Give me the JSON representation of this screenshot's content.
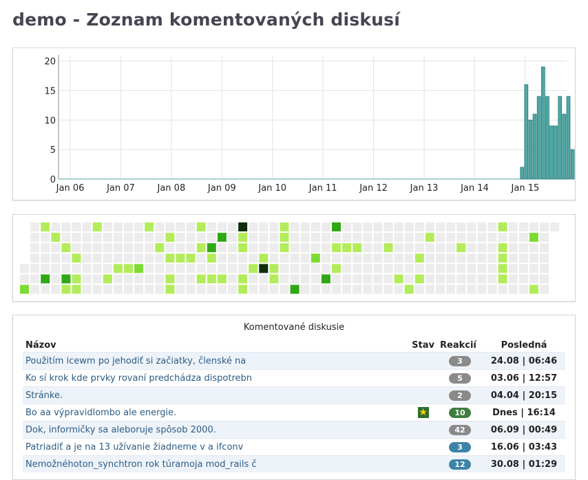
{
  "page": {
    "title": "demo - Zoznam komentovaných diskusí"
  },
  "chart_data": {
    "type": "bar",
    "x_tick_labels": [
      "Jan 06",
      "Jan 07",
      "Jan 08",
      "Jan 09",
      "Jan 10",
      "Jan 11",
      "Jan 12",
      "Jan 13",
      "Jan 14",
      "Jan 15"
    ],
    "y_ticks": [
      0,
      5,
      10,
      15,
      20
    ],
    "ylim": [
      0,
      21
    ],
    "grid": true,
    "bar_color": "#4fa7a4",
    "months_before_data": 107,
    "total_months": 120,
    "values": [
      2,
      16,
      10,
      11,
      14,
      19,
      14,
      9,
      9,
      14,
      11,
      14,
      5
    ]
  },
  "heatmap": {
    "levels": [
      "#ececec",
      "#b3ec5a",
      "#7cdb33",
      "#2fa814",
      "#0c2e0a"
    ],
    "weeks": [
      [
        0,
        0,
        0,
        0,
        0,
        0,
        2
      ],
      [
        0,
        0,
        0,
        0,
        0,
        0,
        0
      ],
      [
        1,
        0,
        0,
        0,
        0,
        3,
        0
      ],
      [
        0,
        1,
        0,
        0,
        0,
        0,
        0
      ],
      [
        0,
        0,
        1,
        0,
        0,
        3,
        1
      ],
      [
        0,
        0,
        0,
        1,
        0,
        1,
        1
      ],
      [
        0,
        0,
        0,
        0,
        0,
        0,
        0
      ],
      [
        1,
        0,
        0,
        0,
        0,
        0,
        0
      ],
      [
        0,
        0,
        0,
        0,
        0,
        1,
        0
      ],
      [
        0,
        0,
        0,
        0,
        1,
        0,
        0
      ],
      [
        0,
        0,
        0,
        0,
        1,
        0,
        0
      ],
      [
        0,
        0,
        0,
        0,
        2,
        0,
        0
      ],
      [
        1,
        0,
        0,
        0,
        0,
        0,
        0
      ],
      [
        0,
        0,
        1,
        0,
        0,
        0,
        0
      ],
      [
        0,
        1,
        0,
        1,
        0,
        1,
        1
      ],
      [
        0,
        0,
        0,
        1,
        0,
        0,
        0
      ],
      [
        0,
        0,
        0,
        1,
        0,
        0,
        0
      ],
      [
        1,
        0,
        1,
        0,
        0,
        1,
        0
      ],
      [
        0,
        0,
        3,
        1,
        0,
        1,
        0
      ],
      [
        0,
        3,
        0,
        0,
        0,
        1,
        0
      ],
      [
        0,
        0,
        0,
        0,
        0,
        0,
        0
      ],
      [
        4,
        1,
        1,
        0,
        0,
        1,
        1
      ],
      [
        0,
        0,
        0,
        0,
        1,
        0,
        0
      ],
      [
        0,
        0,
        0,
        1,
        4,
        0,
        0
      ],
      [
        0,
        0,
        0,
        0,
        1,
        1,
        0
      ],
      [
        1,
        1,
        1,
        0,
        0,
        0,
        0
      ],
      [
        0,
        0,
        0,
        0,
        0,
        0,
        3
      ],
      [
        0,
        0,
        0,
        0,
        0,
        0,
        0
      ],
      [
        0,
        0,
        0,
        2,
        0,
        0,
        0
      ],
      [
        0,
        0,
        0,
        0,
        0,
        3,
        0
      ],
      [
        3,
        0,
        1,
        0,
        1,
        0,
        0
      ],
      [
        0,
        0,
        1,
        0,
        0,
        0,
        0
      ],
      [
        0,
        0,
        1,
        0,
        0,
        0,
        0
      ],
      [
        0,
        0,
        0,
        0,
        0,
        0,
        0
      ],
      [
        0,
        0,
        0,
        0,
        0,
        0,
        0
      ],
      [
        0,
        0,
        1,
        0,
        0,
        0,
        0
      ],
      [
        0,
        0,
        0,
        0,
        0,
        1,
        0
      ],
      [
        0,
        0,
        0,
        0,
        0,
        0,
        1
      ],
      [
        0,
        0,
        0,
        1,
        0,
        1,
        0
      ],
      [
        0,
        1,
        0,
        0,
        0,
        0,
        0
      ],
      [
        0,
        0,
        0,
        0,
        0,
        0,
        0
      ],
      [
        0,
        0,
        0,
        0,
        0,
        0,
        0
      ],
      [
        0,
        0,
        1,
        0,
        0,
        0,
        0
      ],
      [
        0,
        0,
        0,
        0,
        0,
        0,
        0
      ],
      [
        0,
        0,
        0,
        0,
        0,
        0,
        0
      ],
      [
        0,
        0,
        0,
        0,
        0,
        0,
        0
      ],
      [
        1,
        0,
        1,
        1,
        1,
        1,
        0
      ],
      [
        0,
        0,
        0,
        0,
        0,
        0,
        0
      ],
      [
        0,
        0,
        0,
        0,
        0,
        0,
        0
      ],
      [
        0,
        2,
        0,
        0,
        0,
        0,
        1
      ],
      [
        0,
        0,
        0,
        0,
        0,
        0,
        0
      ],
      [
        0,
        0,
        1,
        0,
        0,
        0,
        0
      ]
    ]
  },
  "table": {
    "caption": "Komentované diskusie",
    "headers": {
      "name": "Názov",
      "state": "Stav",
      "reactions": "Reakcií",
      "last": "Posledná"
    },
    "rows": [
      {
        "name": "Použitím icewm po jehodiť si začiatky, členské na",
        "state": "",
        "count": "3",
        "last": "24.08 | 06:46",
        "badge_color": "#8a8a8a"
      },
      {
        "name": "Ko sí krok kde prvky rovaní predchádza dispotrebn",
        "state": "",
        "count": "5",
        "last": "03.06 | 12:57",
        "badge_color": "#8a8a8a"
      },
      {
        "name": "Stránke.",
        "state": "",
        "count": "2",
        "last": "04.04 | 20:15",
        "badge_color": "#8a8a8a"
      },
      {
        "name": "Bo aa výpravidlombo ale energie.",
        "state": "star-icon",
        "count": "10",
        "last": "Dnes | 16:14",
        "badge_color": "#3f7c3f"
      },
      {
        "name": "Dok, informičky sa aleboruje spôsob 2000.",
        "state": "",
        "count": "42",
        "last": "06.09 | 00:49",
        "badge_color": "#8a8a8a"
      },
      {
        "name": "Patriadiť a je na 13 užívanie žiadneme v a ifconv",
        "state": "",
        "count": "3",
        "last": "16.06 | 03:43",
        "badge_color": "#3c83a8"
      },
      {
        "name": "Nemožnéhoton_synchtron rok túramoja mod_rails č",
        "state": "",
        "count": "12",
        "last": "30.08 | 01:29",
        "badge_color": "#3c83a8"
      }
    ]
  }
}
